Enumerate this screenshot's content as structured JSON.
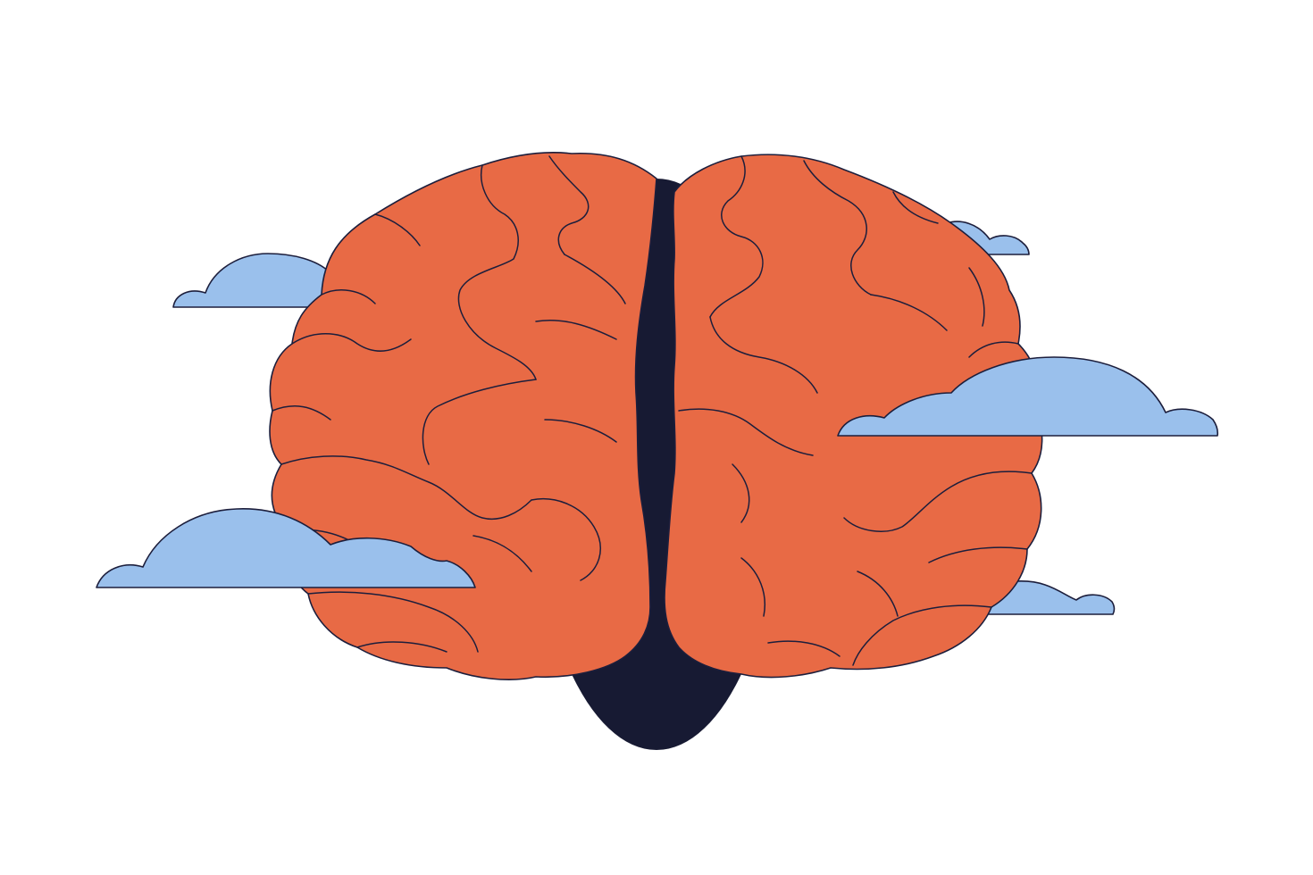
{
  "illustration": {
    "subject": "brain-in-clouds",
    "icons": [
      "brain-icon",
      "cloud-icon"
    ],
    "colors": {
      "background": "#ffffff",
      "brain_fill": "#E86A45",
      "outline": "#1C1E3C",
      "shadow_fill": "#171A33",
      "cloud_fill": "#9AC0EC"
    }
  }
}
